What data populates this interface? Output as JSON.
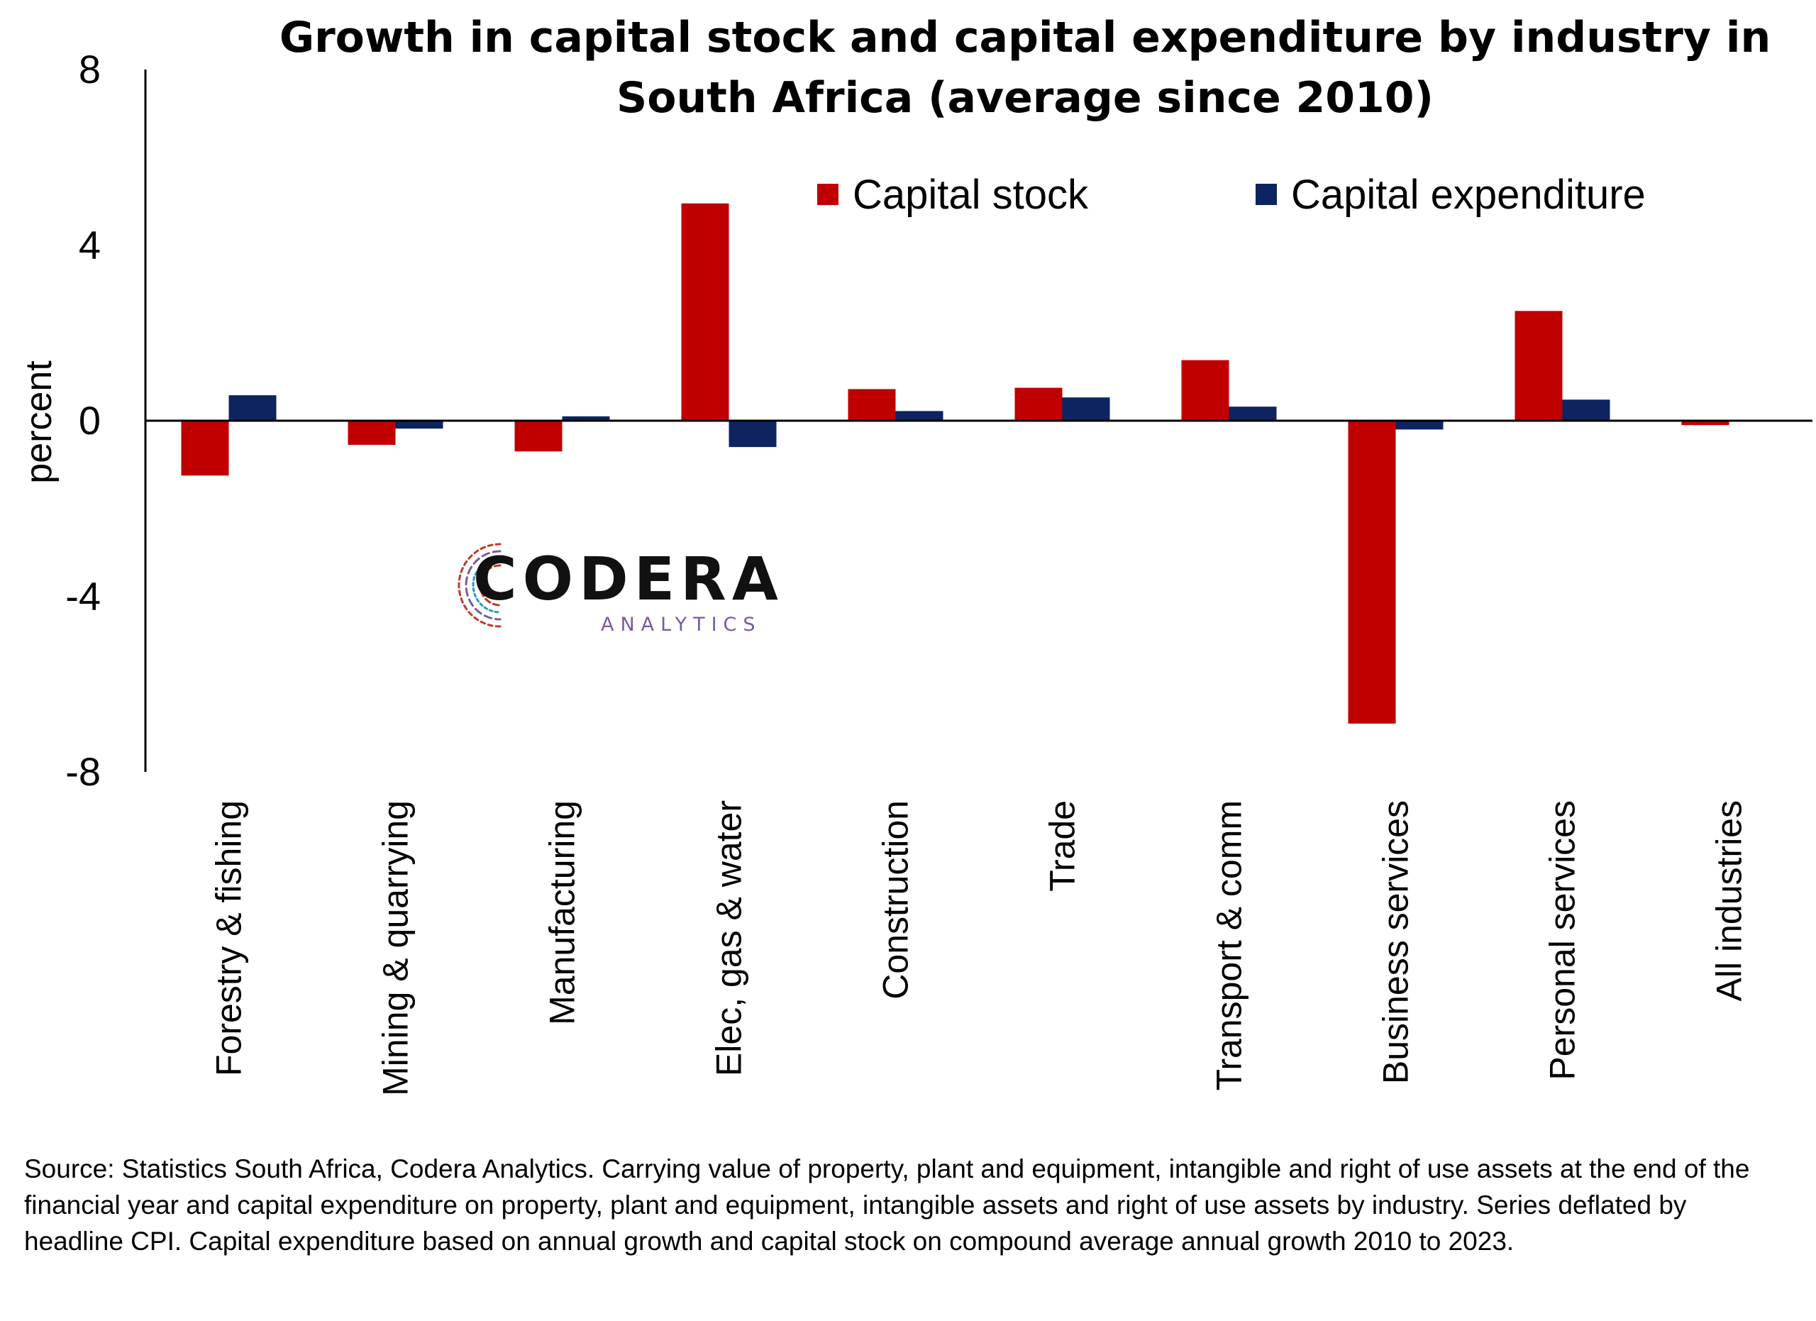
{
  "chart_data": {
    "type": "bar",
    "title_lines": [
      "Growth in capital stock and capital expenditure by industry in",
      "South Africa (average since 2010)"
    ],
    "ylabel": "percent",
    "xlabel": "",
    "ylim": [
      -8,
      8
    ],
    "yticks": [
      8,
      4,
      0,
      -4,
      -8
    ],
    "grid": false,
    "legend_position": "top-right",
    "categories": [
      "Forestry & fishing",
      "Mining & quarrying",
      "Manufacturing",
      "Elec, gas & water",
      "Construction",
      "Trade",
      "Transport & comm",
      "Business services",
      "Personal services",
      "All industries"
    ],
    "series": [
      {
        "name": "Capital stock",
        "color": "#c00000",
        "values": [
          -1.25,
          -0.55,
          -0.7,
          4.95,
          0.72,
          0.75,
          1.38,
          -6.9,
          2.5,
          -0.1
        ]
      },
      {
        "name": "Capital expenditure",
        "color": "#0d2461",
        "values": [
          0.58,
          -0.18,
          0.1,
          -0.6,
          0.22,
          0.53,
          0.32,
          -0.2,
          0.48,
          0.0
        ]
      }
    ]
  },
  "logo": {
    "name": "CODERA",
    "tagline": "ANALYTICS"
  },
  "source_note": "Source: Statistics South Africa, Codera Analytics. Carrying value of property, plant and equipment, intangible and right of use assets at the end of the financial year and capital expenditure on property, plant and equipment, intangible assets and right of use assets by industry. Series deflated by headline CPI. Capital expenditure based on annual growth and capital stock on compound average annual growth 2010 to 2023."
}
